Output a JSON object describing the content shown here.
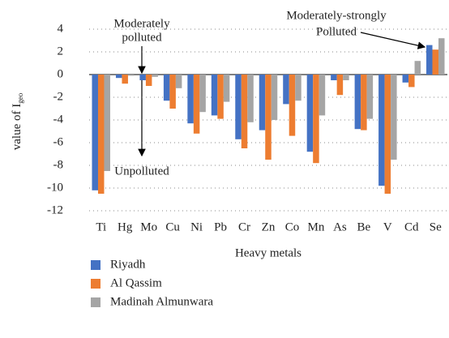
{
  "chart_data": {
    "type": "bar",
    "y_label": "value of I",
    "y_label_sub": "geo",
    "x_label": "Heavy metals",
    "annotations": [
      "Moderately",
      "polluted",
      "Unpolluted",
      "Moderately-strongly",
      "Polluted"
    ],
    "categories": [
      "Ti",
      "Hg",
      "Mo",
      "Cu",
      "Ni",
      "Pb",
      "Cr",
      "Zn",
      "Co",
      "Mn",
      "As",
      "Be",
      "V",
      "Cd",
      "Se"
    ],
    "series": [
      {
        "name": "Riyadh",
        "color": "#4472c4",
        "values": [
          -10.2,
          -0.3,
          -0.5,
          -2.3,
          -4.3,
          -3.6,
          -5.7,
          -4.9,
          -2.6,
          -6.8,
          -0.5,
          -4.8,
          -9.8,
          -0.7,
          2.6
        ]
      },
      {
        "name": "Al Qassim",
        "color": "#ed7d31",
        "values": [
          -10.5,
          -0.8,
          -1.0,
          -3.0,
          -5.2,
          -3.9,
          -6.5,
          -7.5,
          -5.4,
          -7.8,
          -1.8,
          -4.9,
          -10.5,
          -1.1,
          2.2
        ]
      },
      {
        "name": "Madinah Almunwara",
        "color": "#a5a5a5",
        "values": [
          -8.5,
          -0.1,
          -0.2,
          -1.2,
          -3.3,
          -2.4,
          -4.2,
          -4.0,
          -2.3,
          -3.6,
          -0.5,
          -3.9,
          -7.5,
          1.2,
          3.2
        ]
      }
    ],
    "ylim": [
      -12.5,
      4.5
    ],
    "yticks": [
      -12,
      -10,
      -8,
      -6,
      -4,
      -2,
      0,
      2,
      4
    ],
    "grid": true
  }
}
